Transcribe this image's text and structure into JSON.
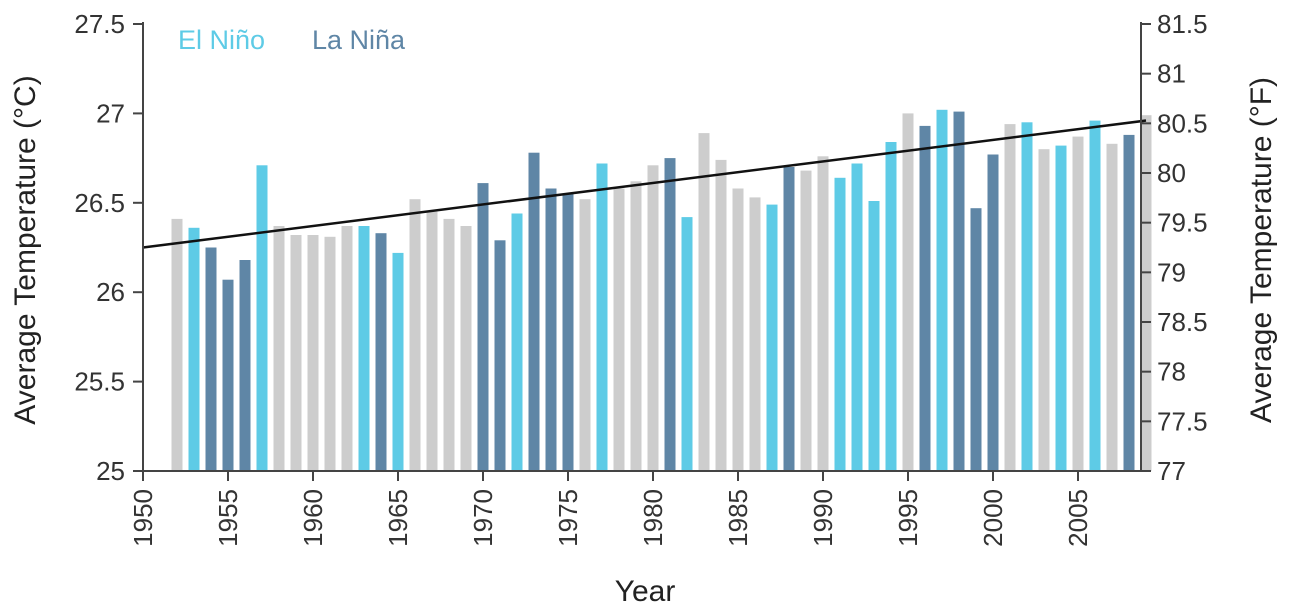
{
  "chart_data": {
    "type": "bar",
    "x_label": "Year",
    "y_label_left": "Average Temperature (°C)",
    "y_label_right": "Average Temperature (°F)",
    "y_range_c": [
      25,
      27.5
    ],
    "y_range_f": [
      77,
      81.5
    ],
    "x_range": [
      1950,
      2009
    ],
    "x_ticks": [
      "1950",
      "1955",
      "1960",
      "1965",
      "1970",
      "1975",
      "1980",
      "1985",
      "1990",
      "1995",
      "2000",
      "2005"
    ],
    "y_ticks_left": [
      "25",
      "25.5",
      "26",
      "26.5",
      "27",
      "27.5"
    ],
    "y_ticks_right": [
      "77",
      "77.5",
      "78",
      "78.5",
      "79",
      "79.5",
      "80",
      "80.5",
      "81",
      "81.5"
    ],
    "legend": [
      {
        "label": "El Niño",
        "color": "#5ecbe6"
      },
      {
        "label": "La Niña",
        "color": "#5f86a6"
      }
    ],
    "neutral_color": "#cdcdcd",
    "trend_color": "#111111",
    "trend_line": {
      "x": [
        1950,
        2009
      ],
      "y": [
        26.25,
        26.96
      ]
    },
    "years": [
      1952,
      1953,
      1954,
      1955,
      1956,
      1957,
      1958,
      1959,
      1960,
      1961,
      1962,
      1963,
      1964,
      1965,
      1966,
      1967,
      1968,
      1969,
      1970,
      1971,
      1972,
      1973,
      1974,
      1975,
      1976,
      1977,
      1978,
      1979,
      1980,
      1981,
      1982,
      1983,
      1984,
      1985,
      1986,
      1987,
      1988,
      1989,
      1990,
      1991,
      1992,
      1993,
      1994,
      1995,
      1996,
      1997,
      1998,
      1999,
      2000,
      2001,
      2002,
      2003,
      2004,
      2005,
      2006,
      2007,
      2008,
      2009
    ],
    "values": [
      26.41,
      26.36,
      26.25,
      26.07,
      26.18,
      26.71,
      26.37,
      26.32,
      26.32,
      26.31,
      26.37,
      26.37,
      26.33,
      26.22,
      26.52,
      26.45,
      26.41,
      26.37,
      26.61,
      26.29,
      26.44,
      26.78,
      26.58,
      26.55,
      26.52,
      26.72,
      26.58,
      26.62,
      26.71,
      26.75,
      26.42,
      26.89,
      26.74,
      26.58,
      26.53,
      26.49,
      26.7,
      26.68,
      26.76,
      26.64,
      26.72,
      26.51,
      26.84,
      27.0,
      26.93,
      27.02,
      27.01,
      26.47,
      26.77,
      26.94,
      26.95,
      26.8,
      26.82,
      26.87,
      26.96,
      26.83,
      26.88,
      26.99
    ],
    "enso": [
      "N",
      "E",
      "L",
      "L",
      "L",
      "E",
      "N",
      "N",
      "N",
      "N",
      "N",
      "E",
      "L",
      "E",
      "N",
      "N",
      "N",
      "N",
      "L",
      "L",
      "E",
      "L",
      "L",
      "L",
      "N",
      "E",
      "N",
      "N",
      "N",
      "L",
      "E",
      "N",
      "N",
      "N",
      "N",
      "E",
      "L",
      "N",
      "N",
      "E",
      "E",
      "E",
      "E",
      "N",
      "L",
      "E",
      "L",
      "L",
      "L",
      "N",
      "E",
      "N",
      "E",
      "N",
      "E",
      "N",
      "L",
      "N"
    ]
  }
}
